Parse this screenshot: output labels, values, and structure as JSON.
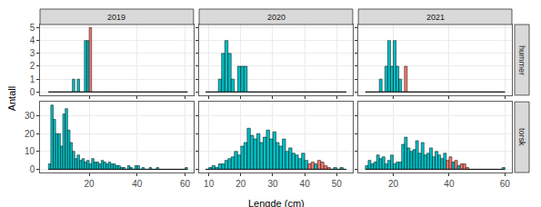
{
  "chart_data": {
    "type": "histogram",
    "xlabel": "Lengde (cm)",
    "ylabel": "Antall",
    "grid": true,
    "columns": [
      {
        "label": "2019",
        "bins": [
          3,
          4,
          5,
          6,
          7,
          8,
          9,
          10,
          11,
          12,
          13,
          14,
          15,
          16,
          17,
          18,
          19,
          20,
          21,
          22,
          23,
          24,
          25,
          26,
          27,
          28,
          29,
          30,
          31,
          32,
          33,
          34,
          35,
          36,
          37,
          38,
          39,
          40,
          41,
          42,
          43,
          44,
          45,
          46,
          47,
          48,
          49,
          50,
          51,
          52,
          53,
          54,
          55,
          56,
          57,
          58,
          59,
          60,
          61
        ],
        "xlim": [
          -0.5,
          63.5
        ],
        "xticks": [
          20,
          40,
          60
        ]
      },
      {
        "label": "2020",
        "bins": [
          9,
          10,
          11,
          12,
          13,
          14,
          15,
          16,
          17,
          18,
          19,
          20,
          21,
          22,
          23,
          24,
          25,
          26,
          27,
          28,
          29,
          30,
          31,
          32,
          33,
          34,
          35,
          36,
          37,
          38,
          39,
          40,
          41,
          42,
          43,
          44,
          45,
          46,
          47,
          48,
          49,
          50,
          51,
          52,
          53
        ],
        "xlim": [
          7,
          55
        ],
        "xticks": [
          10,
          20,
          30,
          40,
          50
        ]
      },
      {
        "label": "2021",
        "bins": [
          10,
          11,
          12,
          13,
          14,
          15,
          16,
          17,
          18,
          19,
          20,
          21,
          22,
          23,
          24,
          25,
          26,
          27,
          28,
          29,
          30,
          31,
          32,
          33,
          34,
          35,
          36,
          37,
          38,
          39,
          40,
          41,
          42,
          43,
          44,
          45,
          46,
          47,
          48,
          49,
          50,
          51,
          52,
          53,
          54,
          55,
          56,
          57,
          58,
          59,
          60
        ],
        "xlim": [
          7.5,
          62.5
        ],
        "xticks": [
          20,
          40,
          60
        ]
      }
    ],
    "rows": [
      {
        "label": "hummer",
        "ylim": [
          -0.25,
          5.25
        ],
        "yticks": [
          0,
          1,
          2,
          3,
          4,
          5
        ]
      },
      {
        "label": "torsk",
        "ylim": [
          -1.8,
          37.8
        ],
        "yticks": [
          0,
          10,
          20,
          30
        ]
      }
    ],
    "panels": [
      {
        "column": 0,
        "row": 0,
        "counts": [
          0,
          0,
          0,
          0,
          0,
          0,
          0,
          0,
          0,
          0,
          1,
          0,
          1,
          0,
          0,
          4,
          4,
          5,
          0,
          0,
          0,
          0,
          0,
          0,
          0,
          0,
          0,
          0,
          0,
          0,
          0,
          0,
          0,
          0,
          0,
          0,
          0,
          0,
          0,
          0,
          0,
          0,
          0,
          0,
          0,
          0,
          0,
          0,
          0,
          0,
          0,
          0,
          0,
          0,
          0,
          0,
          0,
          0
        ],
        "colors": [
          "#00BFC4",
          "#00BFC4",
          "#00BFC4",
          "#00BFC4",
          "#00BFC4",
          "#00BFC4",
          "#00BFC4",
          "#00BFC4",
          "#00BFC4",
          "#00BFC4",
          "#00BFC4",
          "#00BFC4",
          "#00BFC4",
          "#00BFC4",
          "#00BFC4",
          "#00BFC4",
          "#00BFC4",
          "#F8766D",
          "#00BFC4",
          "#00BFC4",
          "#00BFC4",
          "#00BFC4",
          "#00BFC4",
          "#00BFC4",
          "#00BFC4",
          "#00BFC4",
          "#00BFC4",
          "#00BFC4",
          "#00BFC4",
          "#00BFC4",
          "#00BFC4",
          "#00BFC4",
          "#00BFC4",
          "#00BFC4",
          "#00BFC4",
          "#00BFC4",
          "#00BFC4",
          "#00BFC4",
          "#00BFC4",
          "#00BFC4",
          "#00BFC4",
          "#00BFC4",
          "#00BFC4",
          "#00BFC4",
          "#00BFC4",
          "#00BFC4",
          "#00BFC4",
          "#00BFC4",
          "#00BFC4",
          "#00BFC4",
          "#00BFC4",
          "#00BFC4",
          "#00BFC4",
          "#00BFC4",
          "#00BFC4",
          "#00BFC4",
          "#00BFC4",
          "#00BFC4"
        ]
      },
      {
        "column": 0,
        "row": 1,
        "counts": [
          3,
          36,
          28,
          20,
          20,
          13,
          31,
          34,
          22,
          15,
          10,
          6,
          8,
          5,
          6,
          4,
          5,
          3,
          6,
          4,
          4,
          3,
          5,
          4,
          3,
          4,
          3,
          3,
          2,
          2,
          1,
          1,
          0,
          2,
          1,
          0,
          2,
          2,
          0,
          1,
          0,
          0,
          1,
          0,
          0,
          1,
          0,
          0,
          0,
          0,
          0,
          0,
          0,
          0,
          0,
          0,
          0,
          1
        ],
        "colors": [
          "#00BFC4",
          "#00BFC4",
          "#00BFC4",
          "#00BFC4",
          "#00BFC4",
          "#00BFC4",
          "#00BFC4",
          "#00BFC4",
          "#00BFC4",
          "#00BFC4",
          "#00BFC4",
          "#00BFC4",
          "#00BFC4",
          "#00BFC4",
          "#00BFC4",
          "#00BFC4",
          "#00BFC4",
          "#00BFC4",
          "#00BFC4",
          "#00BFC4",
          "#00BFC4",
          "#00BFC4",
          "#00BFC4",
          "#00BFC4",
          "#00BFC4",
          "#00BFC4",
          "#00BFC4",
          "#00BFC4",
          "#00BFC4",
          "#00BFC4",
          "#00BFC4",
          "#00BFC4",
          "#00BFC4",
          "#00BFC4",
          "#00BFC4",
          "#00BFC4",
          "#00BFC4",
          "#00BFC4",
          "#00BFC4",
          "#00BFC4",
          "#00BFC4",
          "#00BFC4",
          "#00BFC4",
          "#00BFC4",
          "#00BFC4",
          "#00BFC4",
          "#00BFC4",
          "#00BFC4",
          "#00BFC4",
          "#00BFC4",
          "#00BFC4",
          "#00BFC4",
          "#00BFC4",
          "#00BFC4",
          "#00BFC4",
          "#00BFC4",
          "#00BFC4",
          "#00BFC4"
        ]
      },
      {
        "column": 1,
        "row": 0,
        "counts": [
          0,
          0,
          0,
          0,
          1,
          3,
          4,
          3,
          1,
          0,
          2,
          2,
          2,
          0,
          0,
          0,
          0,
          0,
          0,
          0,
          0,
          0,
          0,
          0,
          0,
          0,
          0,
          0,
          0,
          0,
          0,
          0,
          0,
          0,
          0,
          0,
          0,
          0,
          0,
          0,
          0,
          0,
          0,
          0
        ],
        "colors": [
          "#00BFC4",
          "#00BFC4",
          "#00BFC4",
          "#00BFC4",
          "#00BFC4",
          "#00BFC4",
          "#00BFC4",
          "#00BFC4",
          "#00BFC4",
          "#00BFC4",
          "#00BFC4",
          "#00BFC4",
          "#00BFC4",
          "#00BFC4",
          "#00BFC4",
          "#00BFC4",
          "#00BFC4",
          "#00BFC4",
          "#00BFC4",
          "#00BFC4",
          "#00BFC4",
          "#00BFC4",
          "#00BFC4",
          "#00BFC4",
          "#00BFC4",
          "#00BFC4",
          "#00BFC4",
          "#00BFC4",
          "#00BFC4",
          "#00BFC4",
          "#00BFC4",
          "#00BFC4",
          "#00BFC4",
          "#00BFC4",
          "#00BFC4",
          "#00BFC4",
          "#00BFC4",
          "#00BFC4",
          "#00BFC4",
          "#00BFC4",
          "#00BFC4",
          "#00BFC4",
          "#00BFC4",
          "#00BFC4"
        ]
      },
      {
        "column": 1,
        "row": 1,
        "counts": [
          0,
          1,
          2,
          1,
          3,
          3,
          5,
          6,
          7,
          10,
          8,
          13,
          15,
          23,
          19,
          17,
          20,
          15,
          18,
          22,
          17,
          21,
          15,
          13,
          17,
          10,
          12,
          9,
          8,
          6,
          9,
          5,
          3,
          4,
          3,
          5,
          4,
          2,
          1,
          0,
          1,
          0,
          1,
          0
        ],
        "colors": [
          "#00BFC4",
          "#00BFC4",
          "#00BFC4",
          "#00BFC4",
          "#00BFC4",
          "#00BFC4",
          "#00BFC4",
          "#00BFC4",
          "#00BFC4",
          "#00BFC4",
          "#00BFC4",
          "#00BFC4",
          "#00BFC4",
          "#00BFC4",
          "#00BFC4",
          "#00BFC4",
          "#00BFC4",
          "#00BFC4",
          "#00BFC4",
          "#00BFC4",
          "#00BFC4",
          "#00BFC4",
          "#00BFC4",
          "#00BFC4",
          "#00BFC4",
          "#00BFC4",
          "#00BFC4",
          "#00BFC4",
          "#00BFC4",
          "#00BFC4",
          "#00BFC4",
          "#00BFC4",
          "#F8766D",
          "#F8766D",
          "#00BFC4",
          "#F8766D",
          "#F8766D",
          "#F8766D",
          "#F8766D",
          "#00BFC4",
          "#00BFC4",
          "#00BFC4",
          "#00BFC4",
          "#00BFC4"
        ]
      },
      {
        "column": 2,
        "row": 0,
        "counts": [
          0,
          0,
          0,
          0,
          0,
          1,
          0,
          2,
          4,
          2,
          4,
          2,
          1,
          0,
          2,
          0,
          0,
          0,
          0,
          0,
          0,
          0,
          0,
          0,
          0,
          0,
          0,
          0,
          0,
          0,
          0,
          0,
          0,
          0,
          0,
          0,
          0,
          0,
          0,
          0,
          0,
          0,
          0,
          0,
          0,
          0,
          0,
          0,
          0,
          0
        ],
        "colors": [
          "#00BFC4",
          "#00BFC4",
          "#00BFC4",
          "#00BFC4",
          "#00BFC4",
          "#00BFC4",
          "#00BFC4",
          "#00BFC4",
          "#00BFC4",
          "#00BFC4",
          "#00BFC4",
          "#00BFC4",
          "#00BFC4",
          "#00BFC4",
          "#F8766D",
          "#00BFC4",
          "#00BFC4",
          "#00BFC4",
          "#00BFC4",
          "#00BFC4",
          "#00BFC4",
          "#00BFC4",
          "#00BFC4",
          "#00BFC4",
          "#00BFC4",
          "#00BFC4",
          "#00BFC4",
          "#00BFC4",
          "#00BFC4",
          "#00BFC4",
          "#00BFC4",
          "#00BFC4",
          "#00BFC4",
          "#00BFC4",
          "#00BFC4",
          "#00BFC4",
          "#00BFC4",
          "#00BFC4",
          "#00BFC4",
          "#00BFC4",
          "#00BFC4",
          "#00BFC4",
          "#00BFC4",
          "#00BFC4",
          "#00BFC4",
          "#00BFC4",
          "#00BFC4",
          "#00BFC4",
          "#00BFC4",
          "#00BFC4"
        ]
      },
      {
        "column": 2,
        "row": 1,
        "counts": [
          2,
          5,
          3,
          4,
          8,
          6,
          7,
          3,
          5,
          8,
          3,
          4,
          4,
          14,
          18,
          12,
          10,
          11,
          16,
          9,
          15,
          8,
          9,
          12,
          7,
          10,
          8,
          6,
          9,
          5,
          7,
          4,
          5,
          2,
          3,
          3,
          1,
          0,
          0,
          0,
          0,
          0,
          0,
          0,
          0,
          0,
          0,
          0,
          0,
          1
        ],
        "colors": [
          "#00BFC4",
          "#00BFC4",
          "#00BFC4",
          "#00BFC4",
          "#00BFC4",
          "#00BFC4",
          "#00BFC4",
          "#00BFC4",
          "#00BFC4",
          "#00BFC4",
          "#00BFC4",
          "#00BFC4",
          "#00BFC4",
          "#00BFC4",
          "#00BFC4",
          "#00BFC4",
          "#00BFC4",
          "#00BFC4",
          "#00BFC4",
          "#00BFC4",
          "#00BFC4",
          "#00BFC4",
          "#00BFC4",
          "#00BFC4",
          "#00BFC4",
          "#00BFC4",
          "#00BFC4",
          "#00BFC4",
          "#00BFC4",
          "#F8766D",
          "#F8766D",
          "#00BFC4",
          "#F8766D",
          "#00BFC4",
          "#F8766D",
          "#F8766D",
          "#F8766D",
          "#00BFC4",
          "#00BFC4",
          "#00BFC4",
          "#00BFC4",
          "#00BFC4",
          "#00BFC4",
          "#00BFC4",
          "#00BFC4",
          "#00BFC4",
          "#00BFC4",
          "#00BFC4",
          "#00BFC4",
          "#00BFC4"
        ]
      }
    ]
  }
}
